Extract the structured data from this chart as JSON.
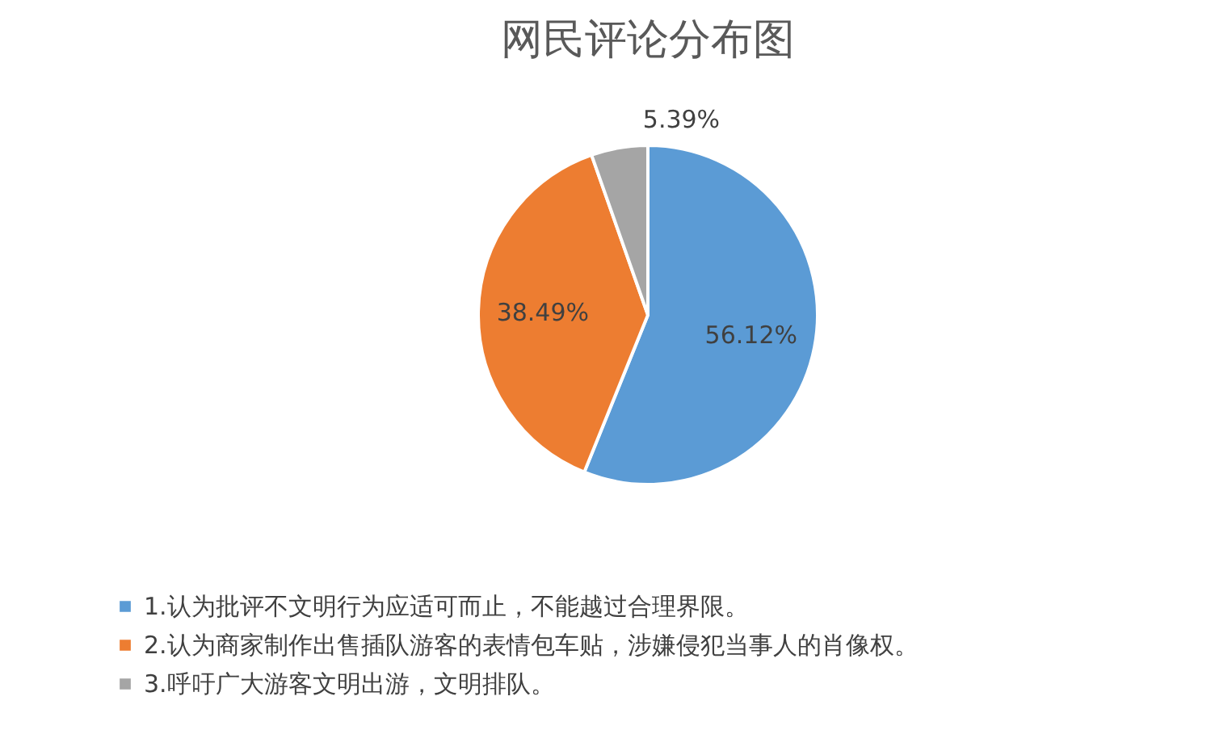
{
  "chart_data": {
    "type": "pie",
    "title": "网民评论分布图",
    "categories": [
      "1.认为批评不文明行为应适可而止，不能越过合理界限。",
      "2.认为商家制作出售插队游客的表情包车贴，涉嫌侵犯当事人的肖像权。",
      "3.呼吁广大游客文明出游，文明排队。"
    ],
    "values": [
      56.12,
      38.49,
      5.39
    ],
    "colors": [
      "#5b9bd5",
      "#ed7d31",
      "#a5a5a5"
    ],
    "value_labels": [
      "56.12%",
      "38.49%",
      "5.39%"
    ],
    "legend": "bottom"
  }
}
